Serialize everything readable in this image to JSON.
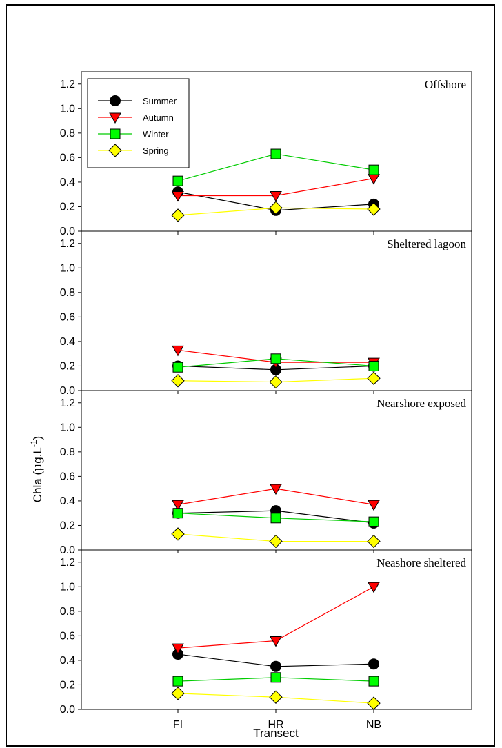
{
  "chart_data": {
    "type": "line",
    "xlabel": "Transect",
    "ylabel": "Chla (μg.L⁻¹)",
    "ylabel_parts": {
      "main": "Chla (",
      "mu": "μ",
      "unit": "g.L",
      "sup": "-1",
      "close": ")"
    },
    "categories": [
      "FI",
      "HR",
      "NB"
    ],
    "ylim": [
      0,
      1.3
    ],
    "yticks": [
      "0.0",
      "0.2",
      "0.4",
      "0.6",
      "0.8",
      "1.0",
      "1.2"
    ],
    "grid": false,
    "legend": {
      "placement": "top-left",
      "panel": 0
    },
    "series_styles": [
      {
        "name": "Summer",
        "color": "#000000",
        "line": "#000000",
        "marker": "circle"
      },
      {
        "name": "Autumn",
        "color": "#ff0000",
        "line": "#ff0000",
        "marker": "triangle-down"
      },
      {
        "name": "Winter",
        "color": "#00ff00",
        "line": "#00cc00",
        "marker": "square"
      },
      {
        "name": "Spring",
        "color": "#ffff00",
        "line": "#ffff00",
        "marker": "diamond"
      }
    ],
    "panels": [
      {
        "title": "Offshore",
        "series": [
          {
            "name": "Summer",
            "values": [
              0.32,
              0.17,
              0.22
            ]
          },
          {
            "name": "Autumn",
            "values": [
              0.29,
              0.29,
              0.43
            ]
          },
          {
            "name": "Winter",
            "values": [
              0.41,
              0.63,
              0.5
            ]
          },
          {
            "name": "Spring",
            "values": [
              0.13,
              0.19,
              0.18
            ]
          }
        ]
      },
      {
        "title": "Sheltered lagoon",
        "series": [
          {
            "name": "Summer",
            "values": [
              0.2,
              0.17,
              0.2
            ]
          },
          {
            "name": "Autumn",
            "values": [
              0.33,
              0.23,
              0.23
            ]
          },
          {
            "name": "Winter",
            "values": [
              0.19,
              0.26,
              0.2
            ]
          },
          {
            "name": "Spring",
            "values": [
              0.08,
              0.07,
              0.1
            ]
          }
        ]
      },
      {
        "title": "Nearshore exposed",
        "series": [
          {
            "name": "Summer",
            "values": [
              0.3,
              0.32,
              0.22
            ]
          },
          {
            "name": "Autumn",
            "values": [
              0.37,
              0.5,
              0.37
            ]
          },
          {
            "name": "Winter",
            "values": [
              0.3,
              0.26,
              0.23
            ]
          },
          {
            "name": "Spring",
            "values": [
              0.13,
              0.07,
              0.07
            ]
          }
        ]
      },
      {
        "title": "Neashore sheltered",
        "series": [
          {
            "name": "Summer",
            "values": [
              0.45,
              0.35,
              0.37
            ]
          },
          {
            "name": "Autumn",
            "values": [
              0.5,
              0.56,
              1.0
            ]
          },
          {
            "name": "Winter",
            "values": [
              0.23,
              0.26,
              0.23
            ]
          },
          {
            "name": "Spring",
            "values": [
              0.13,
              0.1,
              0.05
            ]
          }
        ]
      }
    ]
  }
}
